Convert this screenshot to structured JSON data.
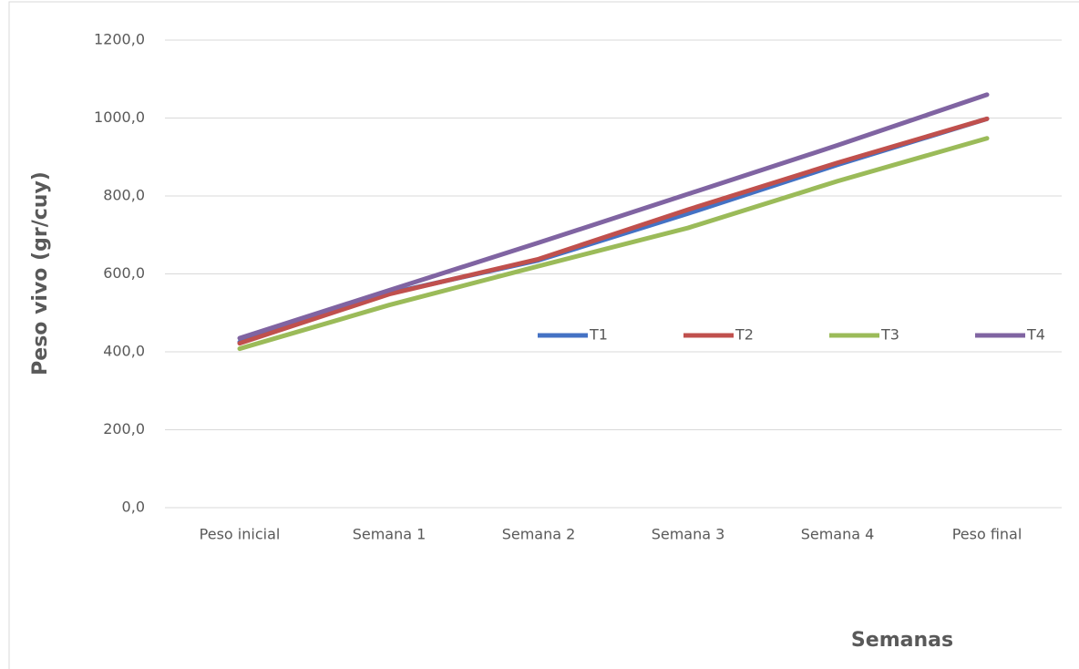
{
  "chart_data": {
    "type": "line",
    "y_label": "Peso vivo (gr/cuy)",
    "x_label": "Semanas",
    "categories": [
      "Peso inicial",
      "Semana 1",
      "Semana 2",
      "Semana 3",
      "Semana 4",
      "Peso final"
    ],
    "series": [
      {
        "name": "T1",
        "color": "#4472c4",
        "values": [
          425,
          550,
          635,
          755,
          880,
          998
        ]
      },
      {
        "name": "T2",
        "color": "#c0504d",
        "values": [
          422,
          548,
          638,
          765,
          885,
          998
        ]
      },
      {
        "name": "T3",
        "color": "#9bbb59",
        "values": [
          408,
          520,
          620,
          718,
          838,
          948
        ]
      },
      {
        "name": "T4",
        "color": "#8064a2",
        "values": [
          435,
          558,
          680,
          805,
          930,
          1060
        ]
      }
    ],
    "ylim": [
      0,
      1200
    ],
    "yticks": [
      {
        "value": 0,
        "label": "0,0"
      },
      {
        "value": 200,
        "label": "200,0"
      },
      {
        "value": 400,
        "label": "400,0"
      },
      {
        "value": 600,
        "label": "600,0"
      },
      {
        "value": 800,
        "label": "800,0"
      },
      {
        "value": 1000,
        "label": "1000,0"
      },
      {
        "value": 1200,
        "label": "1200,0"
      }
    ],
    "grid": true,
    "legend": "center"
  }
}
